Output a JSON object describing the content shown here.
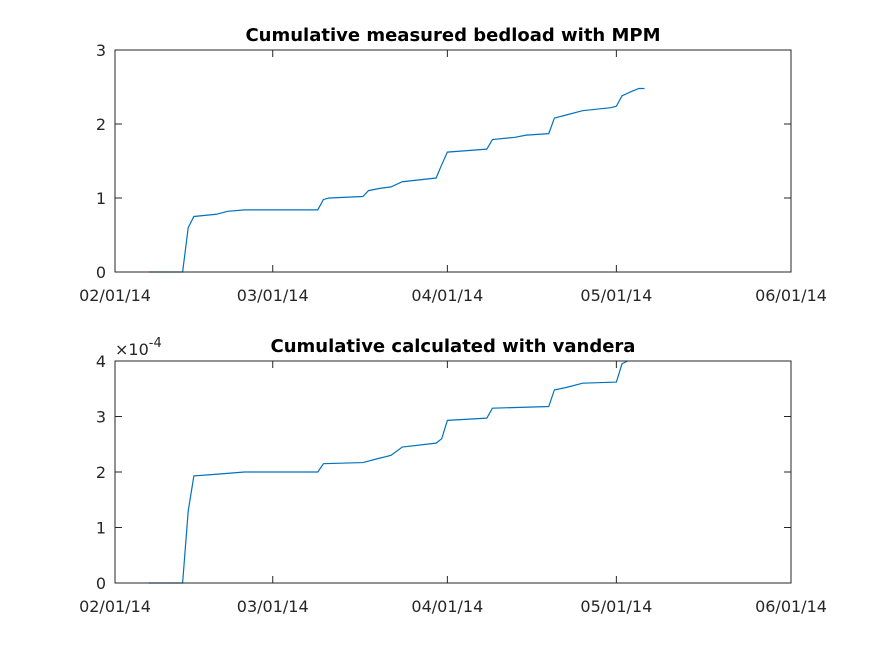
{
  "chart_data": [
    {
      "type": "line",
      "title": "Cumulative measured bedload with MPM",
      "x": [
        "2014-02-07",
        "2014-02-13",
        "2014-02-14",
        "2014-02-15",
        "2014-02-19",
        "2014-02-21",
        "2014-02-24",
        "2014-03-09",
        "2014-03-10",
        "2014-03-11",
        "2014-03-17",
        "2014-03-18",
        "2014-03-20",
        "2014-03-22",
        "2014-03-24",
        "2014-03-30",
        "2014-03-31",
        "2014-04-01",
        "2014-04-08",
        "2014-04-09",
        "2014-04-13",
        "2014-04-15",
        "2014-04-19",
        "2014-04-20",
        "2014-04-22",
        "2014-04-25",
        "2014-04-30",
        "2014-05-01",
        "2014-05-02",
        "2014-05-04",
        "2014-05-05",
        "2014-05-06"
      ],
      "series": [
        {
          "color": "#0072bd",
          "values": [
            0,
            0,
            0.6,
            0.75,
            0.78,
            0.82,
            0.84,
            0.84,
            0.98,
            1.0,
            1.02,
            1.1,
            1.13,
            1.15,
            1.22,
            1.27,
            1.45,
            1.62,
            1.66,
            1.79,
            1.82,
            1.85,
            1.87,
            2.08,
            2.12,
            2.18,
            2.22,
            2.24,
            2.38,
            2.45,
            2.48,
            2.48
          ]
        }
      ],
      "xlim": [
        "2014-02-01",
        "2014-06-01"
      ],
      "xticks": [
        {
          "value": "2014-02-01",
          "label": "02/01/14"
        },
        {
          "value": "2014-03-01",
          "label": "03/01/14"
        },
        {
          "value": "2014-04-01",
          "label": "04/01/14"
        },
        {
          "value": "2014-05-01",
          "label": "05/01/14"
        },
        {
          "value": "2014-06-01",
          "label": "06/01/14"
        }
      ],
      "ylim": [
        0,
        3
      ],
      "yticks": [
        0,
        1,
        2,
        3
      ]
    },
    {
      "type": "line",
      "title": "Cumulative calculated with vandera",
      "x": [
        "2014-02-07",
        "2014-02-13",
        "2014-02-14",
        "2014-02-15",
        "2014-02-19",
        "2014-02-24",
        "2014-03-09",
        "2014-03-10",
        "2014-03-17",
        "2014-03-20",
        "2014-03-22",
        "2014-03-24",
        "2014-03-30",
        "2014-03-31",
        "2014-04-01",
        "2014-04-08",
        "2014-04-09",
        "2014-04-19",
        "2014-04-20",
        "2014-04-22",
        "2014-04-25",
        "2014-05-01",
        "2014-05-02",
        "2014-05-03"
      ],
      "series": [
        {
          "color": "#0072bd",
          "values": [
            0,
            0,
            1.3,
            1.93,
            1.96,
            2.0,
            2.0,
            2.15,
            2.17,
            2.25,
            2.3,
            2.45,
            2.52,
            2.6,
            2.93,
            2.97,
            3.15,
            3.18,
            3.48,
            3.52,
            3.6,
            3.62,
            3.95,
            4.0
          ]
        }
      ],
      "xlim": [
        "2014-02-01",
        "2014-06-01"
      ],
      "xticks": [
        {
          "value": "2014-02-01",
          "label": "02/01/14"
        },
        {
          "value": "2014-03-01",
          "label": "03/01/14"
        },
        {
          "value": "2014-04-01",
          "label": "04/01/14"
        },
        {
          "value": "2014-05-01",
          "label": "05/01/14"
        },
        {
          "value": "2014-06-01",
          "label": "06/01/14"
        }
      ],
      "ylim": [
        0,
        4
      ],
      "yticks": [
        0,
        1,
        2,
        3,
        4
      ],
      "y_multiplier": {
        "base": "×10",
        "exponent": "-4"
      }
    }
  ]
}
